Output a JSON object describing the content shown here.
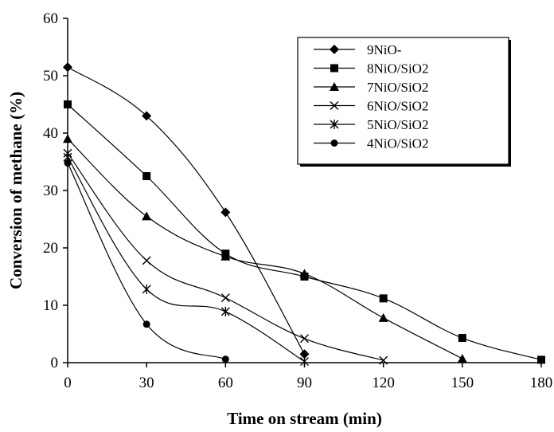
{
  "chart_data": {
    "type": "line",
    "xlabel": "Time on stream (min)",
    "ylabel": "Conversion of methane (%)",
    "xlim": [
      0,
      180
    ],
    "ylim": [
      0,
      60
    ],
    "xticks": [
      0,
      30,
      60,
      90,
      120,
      150,
      180
    ],
    "yticks": [
      0,
      10,
      20,
      30,
      40,
      50,
      60
    ],
    "grid": false,
    "legend_position": "top-right",
    "series": [
      {
        "name": "9NiO-",
        "marker": "diamond",
        "x": [
          0,
          30,
          60,
          90
        ],
        "y": [
          51.5,
          43,
          26.2,
          1.5
        ]
      },
      {
        "name": "8NiO/SiO2",
        "marker": "square",
        "x": [
          0,
          30,
          60,
          90,
          120,
          150,
          180
        ],
        "y": [
          45,
          32.5,
          19,
          15,
          11.2,
          4.3,
          0.5
        ]
      },
      {
        "name": "7NiO/SiO2",
        "marker": "triangle",
        "x": [
          0,
          30,
          60,
          90,
          120,
          150
        ],
        "y": [
          39,
          25.5,
          18.5,
          15.5,
          7.8,
          0.7
        ]
      },
      {
        "name": "6NiO/SiO2",
        "marker": "x",
        "x": [
          0,
          30,
          60,
          90,
          120
        ],
        "y": [
          36.5,
          17.8,
          11.3,
          4.2,
          0.4
        ]
      },
      {
        "name": "5NiO/SiO2",
        "marker": "star",
        "x": [
          0,
          30,
          60,
          90
        ],
        "y": [
          35.8,
          12.8,
          8.9,
          0.2
        ]
      },
      {
        "name": "4NiO/SiO2",
        "marker": "circle",
        "x": [
          0,
          30,
          60
        ],
        "y": [
          34.8,
          6.7,
          0.6
        ]
      }
    ]
  }
}
